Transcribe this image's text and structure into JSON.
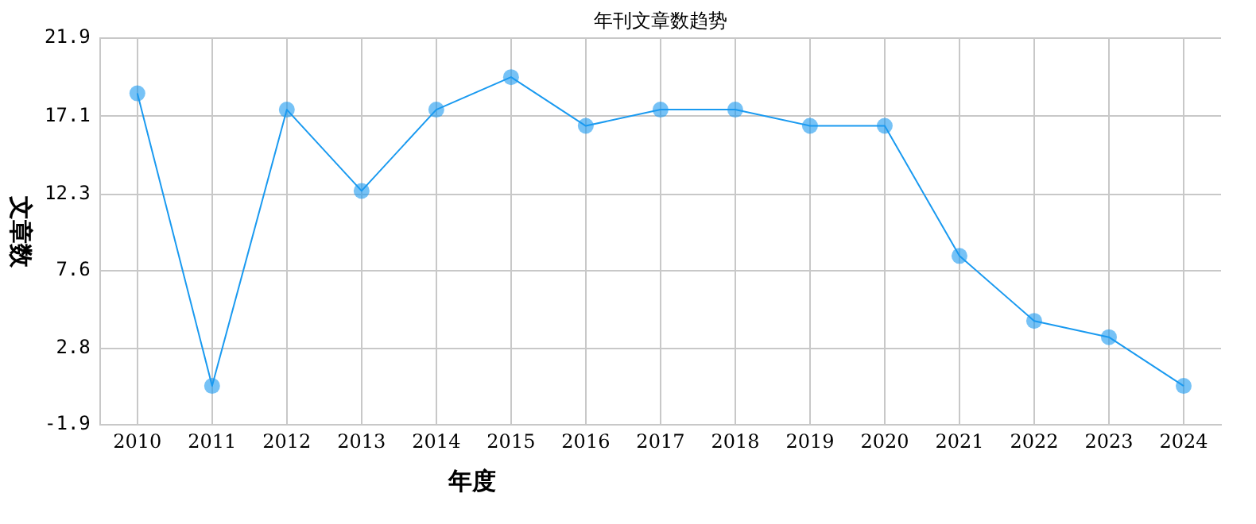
{
  "chart_data": {
    "type": "line",
    "title": "年刊文章数趋势",
    "xlabel": "年度",
    "ylabel": "文章数",
    "categories": [
      "2010",
      "2011",
      "2012",
      "2013",
      "2014",
      "2015",
      "2016",
      "2017",
      "2018",
      "2019",
      "2020",
      "2021",
      "2022",
      "2023",
      "2024"
    ],
    "series": [
      {
        "color": "#1a9af0",
        "values": [
          18.5,
          0.5,
          17.5,
          12.5,
          17.5,
          19.5,
          16.5,
          17.5,
          17.5,
          16.5,
          16.5,
          8.5,
          4.5,
          3.5,
          0.5
        ]
      }
    ],
    "ylim": [
      -1.9,
      21.9
    ],
    "yticks": [
      -1.9,
      2.8,
      7.6,
      12.3,
      17.1,
      21.9
    ],
    "grid": true,
    "legend": false,
    "marker": "circle",
    "line_style": "solid"
  }
}
